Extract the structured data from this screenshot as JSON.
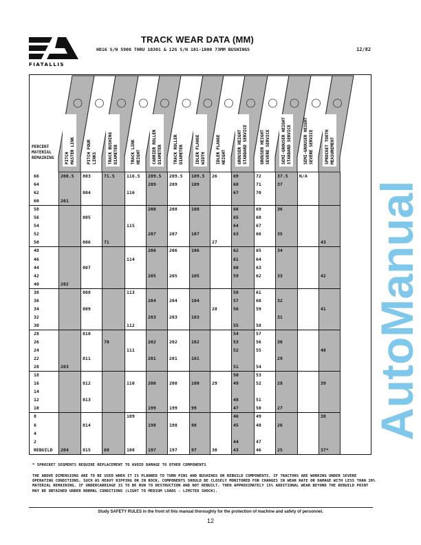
{
  "logo": {
    "brand": "FIATALLIS"
  },
  "header": {
    "title": "TRACK WEAR DATA (MM)",
    "subtitle": "HD16 S/N 5900 THRU 10301 & 12G S/N 101-1000 73MM BUSHINGS",
    "date": "12/82"
  },
  "table": {
    "row_header": [
      "PERCENT",
      "MATERIAL",
      "REMAINING"
    ],
    "columns": [
      [
        "PITCH",
        "MASTER LINK"
      ],
      [
        "PITCH FOUR",
        "LINKS"
      ],
      [
        "TRACK BUSHING",
        "DIAMETER"
      ],
      [
        "TRACK LINK",
        "HEIGHT"
      ],
      [
        "CARRIER ROLLER",
        "DIAMETER"
      ],
      [
        "TRACK ROLLER",
        "DIAMETER"
      ],
      [
        "IDLER FLANGE",
        "WIDTH"
      ],
      [
        "IDLER FLANGE",
        "HEIGHT"
      ],
      [
        "GROUSER HEIGHT",
        "STANDARD SERVICE"
      ],
      [
        "GROUSER HEIGHT",
        "SEVERE SERVICE"
      ],
      [
        "SEMI-GROUSER HEIGHT",
        "STANDARD SERVICE"
      ],
      [
        "SEMI-GROUSER HEIGHT",
        "SEVERE SERVICE"
      ],
      [
        "SPROCKET TOOTH",
        "MEASUREMENT"
      ]
    ],
    "shade_color": "#b4b4b4",
    "rows": [
      {
        "pct": "66",
        "cells": [
          "200.5",
          "803",
          "71.5",
          "116.5",
          "209.5",
          "209.5",
          "109.5",
          "26",
          "69",
          "72",
          "37.5",
          "N/A",
          ""
        ]
      },
      {
        "pct": "64",
        "cells": [
          "",
          "",
          "",
          "",
          "209",
          "209",
          "109",
          "",
          "68",
          "71",
          "37",
          "",
          ""
        ]
      },
      {
        "pct": "62",
        "cells": [
          "",
          "804",
          "",
          "116",
          "",
          "",
          "",
          "",
          "67",
          "70",
          "",
          "",
          ""
        ]
      },
      {
        "pct": "60",
        "cells": [
          "201",
          "",
          "",
          "",
          "",
          "",
          "",
          "",
          "",
          "",
          "",
          "",
          ""
        ]
      },
      {
        "pct": "58",
        "cells": [
          "",
          "",
          "",
          "",
          "208",
          "208",
          "108",
          "",
          "66",
          "69",
          "36",
          "",
          ""
        ]
      },
      {
        "pct": "56",
        "cells": [
          "",
          "805",
          "",
          "",
          "",
          "",
          "",
          "",
          "65",
          "68",
          "",
          "",
          ""
        ]
      },
      {
        "pct": "54",
        "cells": [
          "",
          "",
          "",
          "115",
          "",
          "",
          "",
          "",
          "64",
          "67",
          "",
          "",
          ""
        ]
      },
      {
        "pct": "52",
        "cells": [
          "",
          "",
          "",
          "",
          "207",
          "207",
          "107",
          "",
          "63",
          "66",
          "35",
          "",
          ""
        ]
      },
      {
        "pct": "50",
        "cells": [
          "",
          "806",
          "71",
          "",
          "",
          "",
          "",
          "27",
          "",
          "",
          "",
          "",
          "43"
        ]
      },
      {
        "pct": "48",
        "cells": [
          "",
          "",
          "",
          "",
          "206",
          "206",
          "106",
          "",
          "62",
          "65",
          "34",
          "",
          ""
        ]
      },
      {
        "pct": "46",
        "cells": [
          "",
          "",
          "",
          "114",
          "",
          "",
          "",
          "",
          "61",
          "64",
          "",
          "",
          ""
        ]
      },
      {
        "pct": "44",
        "cells": [
          "",
          "807",
          "",
          "",
          "",
          "",
          "",
          "",
          "60",
          "63",
          "",
          "",
          ""
        ]
      },
      {
        "pct": "42",
        "cells": [
          "",
          "",
          "",
          "",
          "205",
          "205",
          "105",
          "",
          "59",
          "62",
          "33",
          "",
          "42"
        ]
      },
      {
        "pct": "40",
        "cells": [
          "202",
          "",
          "",
          "",
          "",
          "",
          "",
          "",
          "",
          "",
          "",
          "",
          ""
        ]
      },
      {
        "pct": "38",
        "cells": [
          "",
          "808",
          "",
          "113",
          "",
          "",
          "",
          "",
          "58",
          "61",
          "",
          "",
          ""
        ]
      },
      {
        "pct": "36",
        "cells": [
          "",
          "",
          "",
          "",
          "204",
          "204",
          "104",
          "",
          "57",
          "60",
          "32",
          "",
          ""
        ]
      },
      {
        "pct": "34",
        "cells": [
          "",
          "809",
          "",
          "",
          "",
          "",
          "",
          "28",
          "56",
          "59",
          "",
          "",
          "41"
        ]
      },
      {
        "pct": "32",
        "cells": [
          "",
          "",
          "",
          "",
          "203",
          "203",
          "103",
          "",
          "",
          "",
          "31",
          "",
          ""
        ]
      },
      {
        "pct": "30",
        "cells": [
          "",
          "",
          "",
          "112",
          "",
          "",
          "",
          "",
          "55",
          "58",
          "",
          "",
          ""
        ]
      },
      {
        "pct": "28",
        "cells": [
          "",
          "810",
          "",
          "",
          "",
          "",
          "",
          "",
          "54",
          "57",
          "",
          "",
          ""
        ]
      },
      {
        "pct": "26",
        "cells": [
          "",
          "",
          "70",
          "",
          "202",
          "202",
          "102",
          "",
          "53",
          "56",
          "30",
          "",
          ""
        ]
      },
      {
        "pct": "24",
        "cells": [
          "",
          "",
          "",
          "111",
          "",
          "",
          "",
          "",
          "52",
          "55",
          "",
          "",
          "40"
        ]
      },
      {
        "pct": "22",
        "cells": [
          "",
          "811",
          "",
          "",
          "201",
          "201",
          "101",
          "",
          "",
          "",
          "29",
          "",
          ""
        ]
      },
      {
        "pct": "20",
        "cells": [
          "203",
          "",
          "",
          "",
          "",
          "",
          "",
          "",
          "51",
          "54",
          "",
          "",
          ""
        ]
      },
      {
        "pct": "18",
        "cells": [
          "",
          "",
          "",
          "",
          "",
          "",
          "",
          "",
          "50",
          "53",
          "",
          "",
          ""
        ]
      },
      {
        "pct": "16",
        "cells": [
          "",
          "812",
          "",
          "110",
          "200",
          "200",
          "100",
          "29",
          "49",
          "52",
          "28",
          "",
          "39"
        ]
      },
      {
        "pct": "14",
        "cells": [
          "",
          "",
          "",
          "",
          "",
          "",
          "",
          "",
          "",
          "",
          "",
          "",
          ""
        ]
      },
      {
        "pct": "12",
        "cells": [
          "",
          "813",
          "",
          "",
          "",
          "",
          "",
          "",
          "48",
          "51",
          "",
          "",
          ""
        ]
      },
      {
        "pct": "10",
        "cells": [
          "",
          "",
          "",
          "",
          "199",
          "199",
          "99",
          "",
          "47",
          "50",
          "27",
          "",
          ""
        ]
      },
      {
        "pct": "8",
        "cells": [
          "",
          "",
          "",
          "109",
          "",
          "",
          "",
          "",
          "46",
          "49",
          "",
          "",
          "38"
        ]
      },
      {
        "pct": "6",
        "cells": [
          "",
          "814",
          "",
          "",
          "198",
          "198",
          "98",
          "",
          "45",
          "48",
          "26",
          "",
          ""
        ]
      },
      {
        "pct": "4",
        "cells": [
          "",
          "",
          "",
          "",
          "",
          "",
          "",
          "",
          "",
          "",
          "",
          "",
          ""
        ]
      },
      {
        "pct": "2",
        "cells": [
          "",
          "",
          "",
          "",
          "",
          "",
          "",
          "",
          "44",
          "47",
          "",
          "",
          ""
        ]
      },
      {
        "pct": "REBUILD",
        "cells": [
          "204",
          "815",
          "69",
          "108",
          "197",
          "197",
          "97",
          "30",
          "43",
          "46",
          "25",
          "",
          "37*"
        ]
      }
    ]
  },
  "notes": {
    "footnote": "* SPROCKET SEGMENTS REQUIRE REPLACEMENT TO AVOID DAMAGE TO OTHER COMPONENTS",
    "paragraph": "THE ABOVE DIMENSIONS ARE TO BE USED WHEN IT IS PLANNED TO TURN PINS AND BUSHINGS OR REBUILD COMPONENTS.  IF TRACTORS ARE WORKING UNDER SEVERE OPERATING CONDITIONS, SUCH AS HEAVY RIPPING OR IN ROCK, COMPONENTS SHOULD BE CLOSELY MONITORED FOR CHANGES IN WEAR RATE OR DAMAGE WITH LESS THAN 20% MATERIAL REMAINING.  IF UNDERCARRIAGE IS TO BE RUN TO DESTRUCTION AND NOT REBUILT, THEN APPROXIMATELY 15% ADDITIONAL WEAR BEYOND THE REBUILD POINT MAY BE OBTAINED UNDER NORMAL CONDITIONS (LIGHT TO MEDIUM LOADS - LIMITED SHOCK)."
  },
  "footer": {
    "safety": "Study SAFETY RULES in the front of this manual thoroughly for the protection of machine and safety of personnel.",
    "page_number": "12"
  },
  "watermark": {
    "text": "AutoManual",
    "color": "#3caae1"
  }
}
